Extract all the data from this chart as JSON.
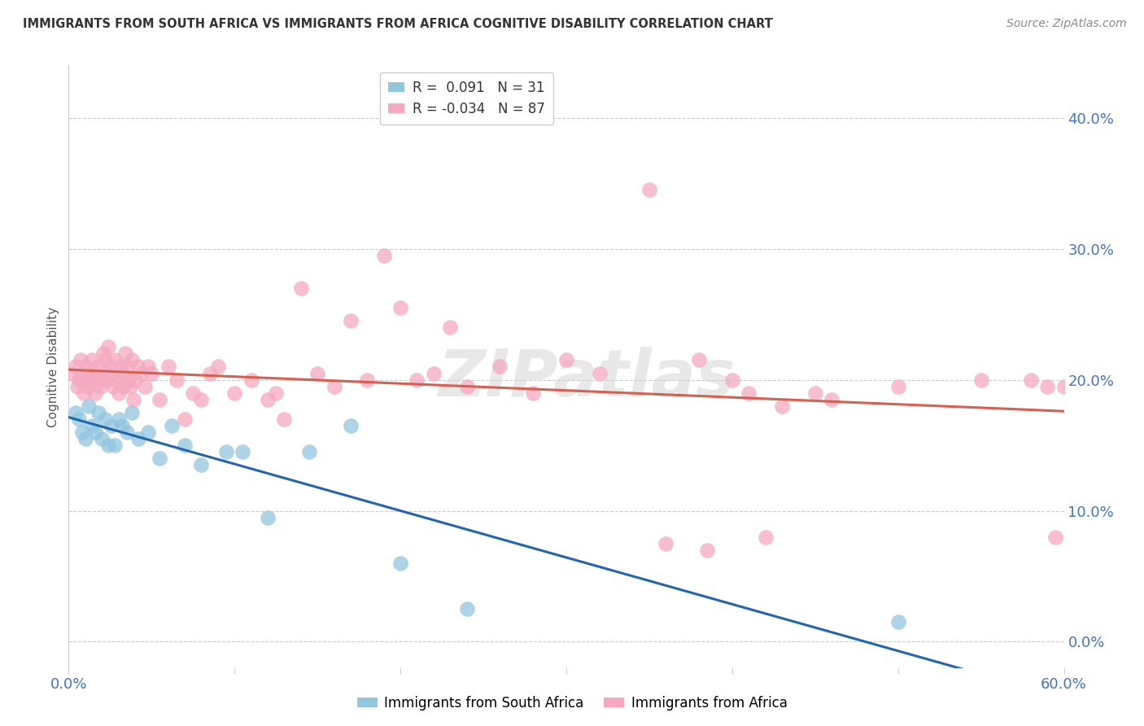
{
  "title": "IMMIGRANTS FROM SOUTH AFRICA VS IMMIGRANTS FROM AFRICA COGNITIVE DISABILITY CORRELATION CHART",
  "source": "Source: ZipAtlas.com",
  "ylabel": "Cognitive Disability",
  "ytick_values": [
    0,
    10,
    20,
    30,
    40
  ],
  "xlim": [
    0,
    60
  ],
  "ylim": [
    -2,
    44
  ],
  "color_blue": "#92c5de",
  "color_pink": "#f4a9c0",
  "line_blue": "#2166ac",
  "line_pink": "#d6604d",
  "watermark": "ZIPatlas",
  "series1_label": "Immigrants from South Africa",
  "series2_label": "Immigrants from Africa",
  "series1_x": [
    0.4,
    0.6,
    0.8,
    1.0,
    1.2,
    1.4,
    1.6,
    1.8,
    2.0,
    2.2,
    2.4,
    2.6,
    2.8,
    3.0,
    3.2,
    3.5,
    3.8,
    4.2,
    4.8,
    5.5,
    6.2,
    7.0,
    8.0,
    9.5,
    10.5,
    12.0,
    14.5,
    17.0,
    20.0,
    24.0,
    50.0
  ],
  "series1_y": [
    17.5,
    17.0,
    16.0,
    15.5,
    18.0,
    16.5,
    16.0,
    17.5,
    15.5,
    17.0,
    15.0,
    16.5,
    15.0,
    17.0,
    16.5,
    16.0,
    17.5,
    15.5,
    16.0,
    14.0,
    16.5,
    15.0,
    13.5,
    14.5,
    14.5,
    9.5,
    14.5,
    16.5,
    6.0,
    2.5,
    1.5
  ],
  "series2_x": [
    0.2,
    0.4,
    0.5,
    0.6,
    0.7,
    0.8,
    0.9,
    1.0,
    1.1,
    1.2,
    1.3,
    1.4,
    1.5,
    1.6,
    1.7,
    1.8,
    1.9,
    2.0,
    2.1,
    2.2,
    2.3,
    2.4,
    2.5,
    2.6,
    2.7,
    2.8,
    2.9,
    3.0,
    3.1,
    3.2,
    3.3,
    3.4,
    3.5,
    3.6,
    3.7,
    3.8,
    3.9,
    4.0,
    4.2,
    4.4,
    4.6,
    4.8,
    5.0,
    5.5,
    6.0,
    6.5,
    7.0,
    7.5,
    8.0,
    8.5,
    9.0,
    10.0,
    11.0,
    12.0,
    12.5,
    13.0,
    14.0,
    15.0,
    16.0,
    17.0,
    18.0,
    19.0,
    20.0,
    21.0,
    22.0,
    23.0,
    24.0,
    26.0,
    28.0,
    30.0,
    32.0,
    35.0,
    38.0,
    42.0,
    46.0,
    50.0,
    55.0,
    58.0,
    59.0,
    59.5,
    60.0,
    36.0,
    38.5,
    40.0,
    41.0,
    43.0,
    45.0
  ],
  "series2_y": [
    20.5,
    21.0,
    19.5,
    20.0,
    21.5,
    20.0,
    19.0,
    21.0,
    20.5,
    19.5,
    20.0,
    21.5,
    20.0,
    19.0,
    20.5,
    21.0,
    19.5,
    20.0,
    22.0,
    21.5,
    20.0,
    22.5,
    21.0,
    20.5,
    19.5,
    21.5,
    20.0,
    19.0,
    21.0,
    20.5,
    19.5,
    22.0,
    21.0,
    20.0,
    19.5,
    21.5,
    18.5,
    20.0,
    21.0,
    20.5,
    19.5,
    21.0,
    20.5,
    18.5,
    21.0,
    20.0,
    17.0,
    19.0,
    18.5,
    20.5,
    21.0,
    19.0,
    20.0,
    18.5,
    19.0,
    17.0,
    27.0,
    20.5,
    19.5,
    24.5,
    20.0,
    29.5,
    25.5,
    20.0,
    20.5,
    24.0,
    19.5,
    21.0,
    19.0,
    21.5,
    20.5,
    34.5,
    21.5,
    8.0,
    18.5,
    19.5,
    20.0,
    20.0,
    19.5,
    8.0,
    19.5,
    7.5,
    7.0,
    20.0,
    19.0,
    18.0,
    19.0
  ]
}
